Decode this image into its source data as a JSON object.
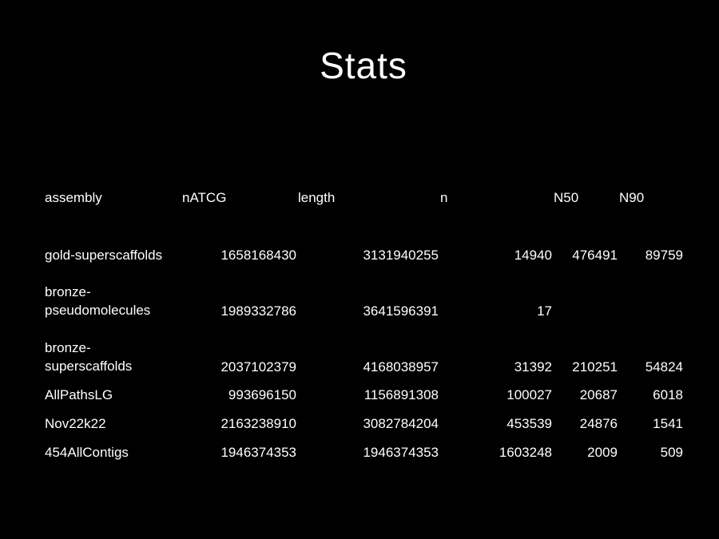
{
  "slide": {
    "title": "Stats"
  },
  "table": {
    "headers": [
      "assembly",
      "nATCG",
      "length",
      "n",
      "N50",
      "N90"
    ],
    "rows": [
      {
        "assembly": [
          "gold-superscaffolds"
        ],
        "nATCG": "1658168430",
        "length": "3131940255",
        "n": "14940",
        "N50": "476491",
        "N90": "89759"
      },
      {
        "assembly": [
          "bronze-",
          "pseudomolecules"
        ],
        "nATCG": "1989332786",
        "length": "3641596391",
        "n": "17",
        "N50": "",
        "N90": ""
      },
      {
        "assembly": [
          "bronze-",
          "superscaffolds"
        ],
        "nATCG": "2037102379",
        "length": "4168038957",
        "n": "31392",
        "N50": "210251",
        "N90": "54824"
      },
      {
        "assembly": [
          "AllPathsLG"
        ],
        "nATCG": "993696150",
        "length": "1156891308",
        "n": "100027",
        "N50": "20687",
        "N90": "6018"
      },
      {
        "assembly": [
          "Nov22k22"
        ],
        "nATCG": "2163238910",
        "length": "3082784204",
        "n": "453539",
        "N50": "24876",
        "N90": "1541"
      },
      {
        "assembly": [
          "454AllContigs"
        ],
        "nATCG": "1946374353",
        "length": "1946374353",
        "n": "1603248",
        "N50": "2009",
        "N90": "509"
      }
    ]
  }
}
